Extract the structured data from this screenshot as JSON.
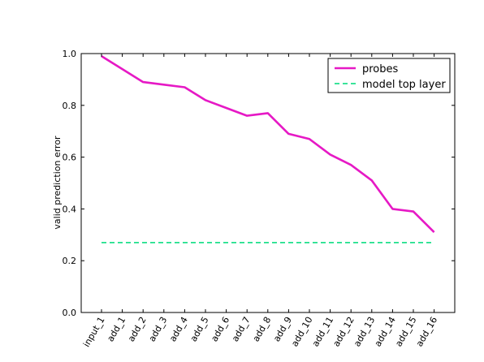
{
  "chart_data": {
    "type": "line",
    "title": "",
    "xlabel": "",
    "ylabel": "valid prediction error",
    "categories": [
      "input_1",
      "add_1",
      "add_2",
      "add_3",
      "add_4",
      "add_5",
      "add_6",
      "add_7",
      "add_8",
      "add_9",
      "add_10",
      "add_11",
      "add_12",
      "add_13",
      "add_14",
      "add_15",
      "add_16"
    ],
    "ylim": [
      0.0,
      1.0
    ],
    "yticks": [
      "0.0",
      "0.2",
      "0.4",
      "0.6",
      "0.8",
      "1.0"
    ],
    "grid": false,
    "legend_position": "top-right",
    "series": [
      {
        "name": "probes",
        "style": "solid",
        "color": "#e619c5",
        "values": [
          0.99,
          0.94,
          0.89,
          0.88,
          0.87,
          0.82,
          0.79,
          0.76,
          0.77,
          0.69,
          0.67,
          0.61,
          0.57,
          0.51,
          0.4,
          0.39,
          0.31
        ]
      },
      {
        "name": "model top layer",
        "style": "dashed",
        "color": "#1fe08c",
        "values": [
          0.27,
          0.27,
          0.27,
          0.27,
          0.27,
          0.27,
          0.27,
          0.27,
          0.27,
          0.27,
          0.27,
          0.27,
          0.27,
          0.27,
          0.27,
          0.27,
          0.27
        ]
      }
    ]
  }
}
